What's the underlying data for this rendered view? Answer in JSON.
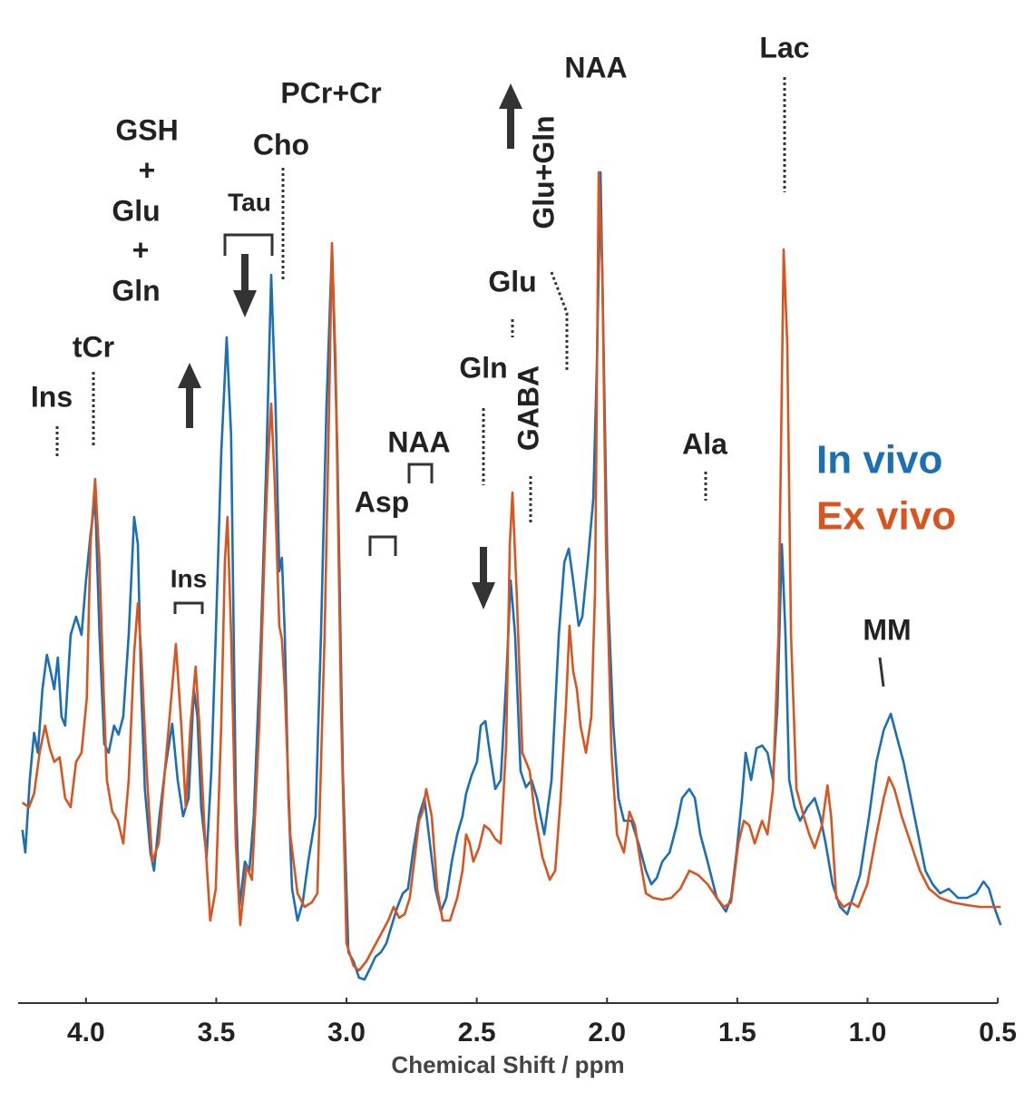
{
  "chart_data": {
    "type": "line",
    "xlabel": "Chemical Shift / ppm",
    "xlim": [
      4.25,
      0.49
    ],
    "ylim": [
      0,
      107
    ],
    "xticks": [
      {
        "value": 4,
        "label": "4.0"
      },
      {
        "value": 3.5,
        "label": "3.5"
      },
      {
        "value": 3,
        "label": "3.0"
      },
      {
        "value": 2.5,
        "label": "2.5"
      },
      {
        "value": 2,
        "label": "2.0"
      },
      {
        "value": 1.5,
        "label": "1.5"
      },
      {
        "value": 1,
        "label": "1.0"
      },
      {
        "value": 0.5,
        "label": "0.5"
      }
    ],
    "annotations": [
      "Ins",
      "tCr",
      "GSH",
      "+",
      "Glu",
      "+",
      "Gln",
      "PCr+Cr",
      "Cho",
      "Tau",
      "Ins",
      "NAA",
      "Asp",
      "Gln",
      "Glu",
      "GABA",
      "Glu+Gln",
      "NAA",
      "Lac",
      "Ala",
      "MM"
    ],
    "series": [
      {
        "name": "In vivo",
        "color": "#1a6fb5",
        "x": [
          4.244,
          4.233,
          4.216,
          4.199,
          4.185,
          4.167,
          4.15,
          4.136,
          4.122,
          4.108,
          4.094,
          4.08,
          4.059,
          4.038,
          4.017,
          4.0,
          3.983,
          3.965,
          3.948,
          3.93,
          3.913,
          3.892,
          3.875,
          3.857,
          3.836,
          3.815,
          3.801,
          3.788,
          3.774,
          3.753,
          3.739,
          3.718,
          3.697,
          3.669,
          3.648,
          3.627,
          3.606,
          3.586,
          3.572,
          3.558,
          3.537,
          3.519,
          3.502,
          3.481,
          3.46,
          3.443,
          3.425,
          3.411,
          3.39,
          3.373,
          3.356,
          3.328,
          3.307,
          3.289,
          3.272,
          3.258,
          3.248,
          3.237,
          3.223,
          3.209,
          3.188,
          3.168,
          3.147,
          3.119,
          3.098,
          3.077,
          3.056,
          3.035,
          3.014,
          2.993,
          2.973,
          2.952,
          2.931,
          2.91,
          2.889,
          2.868,
          2.847,
          2.826,
          2.805,
          2.784,
          2.764,
          2.743,
          2.722,
          2.701,
          2.68,
          2.659,
          2.638,
          2.617,
          2.596,
          2.575,
          2.555,
          2.541,
          2.52,
          2.499,
          2.485,
          2.467,
          2.45,
          2.429,
          2.408,
          2.387,
          2.37,
          2.353,
          2.332,
          2.311,
          2.29,
          2.269,
          2.241,
          2.213,
          2.185,
          2.164,
          2.147,
          2.13,
          2.109,
          2.095,
          2.074,
          2.053,
          2.039,
          2.025,
          2.011,
          1.997,
          1.976,
          1.956,
          1.935,
          1.907,
          1.879,
          1.851,
          1.83,
          1.809,
          1.788,
          1.76,
          1.733,
          1.712,
          1.684,
          1.663,
          1.642,
          1.614,
          1.579,
          1.544,
          1.524,
          1.503,
          1.482,
          1.468,
          1.447,
          1.426,
          1.405,
          1.384,
          1.363,
          1.346,
          1.329,
          1.315,
          1.301,
          1.28,
          1.259,
          1.231,
          1.203,
          1.182,
          1.161,
          1.134,
          1.106,
          1.078,
          1.057,
          1.029,
          0.994,
          0.966,
          0.938,
          0.911,
          0.89,
          0.862,
          0.834,
          0.806,
          0.778,
          0.75,
          0.722,
          0.688,
          0.653,
          0.618,
          0.583,
          0.555,
          0.534,
          0.514,
          0.489
        ],
        "values": [
          17.5,
          15,
          23,
          28.2,
          26,
          33,
          36.8,
          35,
          33,
          36.5,
          30,
          29,
          39,
          41,
          39,
          45,
          50,
          54,
          39,
          27,
          26,
          29,
          28,
          30,
          39,
          52,
          49,
          33,
          22,
          15,
          13,
          19,
          24,
          29.2,
          23,
          19,
          21,
          33,
          30,
          20,
          14.5,
          24,
          39,
          59,
          71.8,
          61,
          21,
          9,
          14,
          13,
          19,
          39,
          59,
          78.7,
          64,
          46,
          47.5,
          39,
          21,
          11,
          7.5,
          9.5,
          14,
          19,
          39,
          64,
          81.8,
          59,
          24,
          4,
          3,
          1.2,
          1,
          2.2,
          3.5,
          4,
          5,
          7,
          9,
          10.5,
          11,
          15.5,
          19,
          21,
          16,
          11,
          8.5,
          10,
          14,
          17,
          19,
          21.5,
          23.5,
          25,
          29,
          29.5,
          26,
          22,
          23,
          34,
          45,
          39,
          24,
          22.2,
          23,
          21,
          17,
          23,
          39,
          47,
          48.5,
          45,
          40,
          41,
          47,
          54,
          69,
          90,
          67,
          44,
          29,
          21,
          18.5,
          18.5,
          16,
          13,
          11.5,
          12.2,
          14,
          15,
          18,
          21,
          22,
          21,
          17,
          14,
          10,
          8.5,
          10,
          15,
          21,
          26,
          23,
          26.5,
          26.8,
          26,
          23,
          31,
          49,
          39,
          23,
          20,
          18.5,
          20,
          21,
          19,
          16,
          11.5,
          9,
          8.2,
          10,
          12.5,
          19,
          25,
          28.5,
          30.3,
          28,
          25,
          21,
          17,
          13,
          11.5,
          10.5,
          11,
          10,
          10,
          10.5,
          11.8,
          11,
          9,
          7
        ]
      },
      {
        "name": "Ex vivo",
        "color": "#d9541e",
        "x": [
          4.244,
          4.219,
          4.199,
          4.178,
          4.157,
          4.139,
          4.122,
          4.101,
          4.08,
          4.059,
          4.038,
          4.017,
          3.997,
          3.983,
          3.965,
          3.948,
          3.934,
          3.92,
          3.899,
          3.878,
          3.857,
          3.836,
          3.815,
          3.801,
          3.788,
          3.767,
          3.746,
          3.721,
          3.697,
          3.676,
          3.655,
          3.634,
          3.617,
          3.599,
          3.579,
          3.565,
          3.544,
          3.523,
          3.502,
          3.481,
          3.467,
          3.457,
          3.443,
          3.425,
          3.408,
          3.384,
          3.363,
          3.335,
          3.314,
          3.3,
          3.289,
          3.276,
          3.258,
          3.248,
          3.237,
          3.216,
          3.188,
          3.161,
          3.133,
          3.112,
          3.084,
          3.067,
          3.056,
          3.042,
          3.021,
          3.0,
          2.973,
          2.952,
          2.924,
          2.896,
          2.868,
          2.84,
          2.819,
          2.798,
          2.777,
          2.757,
          2.736,
          2.722,
          2.708,
          2.694,
          2.673,
          2.652,
          2.631,
          2.603,
          2.575,
          2.555,
          2.541,
          2.527,
          2.513,
          2.492,
          2.471,
          2.45,
          2.429,
          2.408,
          2.387,
          2.373,
          2.363,
          2.346,
          2.325,
          2.297,
          2.276,
          2.248,
          2.22,
          2.199,
          2.178,
          2.158,
          2.144,
          2.13,
          2.116,
          2.102,
          2.081,
          2.06,
          2.046,
          2.032,
          2.018,
          2.004,
          1.983,
          1.962,
          1.935,
          1.914,
          1.893,
          1.872,
          1.851,
          1.823,
          1.788,
          1.753,
          1.719,
          1.684,
          1.649,
          1.614,
          1.579,
          1.551,
          1.524,
          1.496,
          1.475,
          1.454,
          1.433,
          1.405,
          1.384,
          1.363,
          1.342,
          1.322,
          1.308,
          1.294,
          1.273,
          1.245,
          1.224,
          1.203,
          1.175,
          1.154,
          1.14,
          1.12,
          1.092,
          1.064,
          1.036,
          1.001,
          0.966,
          0.938,
          0.918,
          0.897,
          0.869,
          0.834,
          0.799,
          0.764,
          0.722,
          0.674,
          0.618,
          0.569,
          0.534,
          0.489
        ],
        "values": [
          20.5,
          20,
          21.5,
          26,
          29,
          26.5,
          25,
          25.5,
          21,
          20,
          25,
          26,
          32,
          49,
          56.2,
          47,
          34,
          23,
          19.5,
          18.5,
          16,
          23,
          37,
          42.5,
          37,
          24,
          14,
          16,
          24,
          31,
          38,
          29,
          20,
          29,
          35.5,
          29,
          17,
          7.5,
          11,
          29,
          47,
          52,
          39,
          16,
          7,
          13.5,
          12,
          29,
          49,
          59,
          64.5,
          56,
          40,
          38.5,
          33,
          17,
          10.5,
          9,
          9.5,
          10.5,
          39,
          64,
          82.2,
          69,
          31,
          5,
          2.5,
          2,
          3,
          4.5,
          6,
          7.5,
          9,
          7.8,
          8.2,
          10,
          15,
          18.5,
          19.5,
          22,
          19,
          11,
          7.5,
          7.5,
          10,
          13,
          17,
          16,
          14,
          15.5,
          18,
          17.5,
          16.5,
          16,
          27,
          49,
          54.7,
          43,
          26,
          24,
          19,
          14.5,
          12,
          13,
          21,
          31,
          40,
          35,
          33,
          29,
          26,
          30,
          44,
          90,
          79,
          49,
          26,
          17,
          15,
          19.5,
          18,
          14,
          10.5,
          10,
          9.8,
          10,
          11,
          13,
          12.5,
          11.5,
          10,
          9,
          9.5,
          16,
          18.5,
          18,
          16,
          18.5,
          17,
          22,
          39,
          81.5,
          71,
          39,
          22,
          19,
          17,
          15.5,
          18,
          22.4,
          19,
          10,
          9,
          9.5,
          9,
          11.5,
          17,
          21,
          23.3,
          22,
          19,
          16,
          13,
          11,
          10,
          9.5,
          9.2,
          9,
          9,
          9
        ]
      }
    ]
  }
}
